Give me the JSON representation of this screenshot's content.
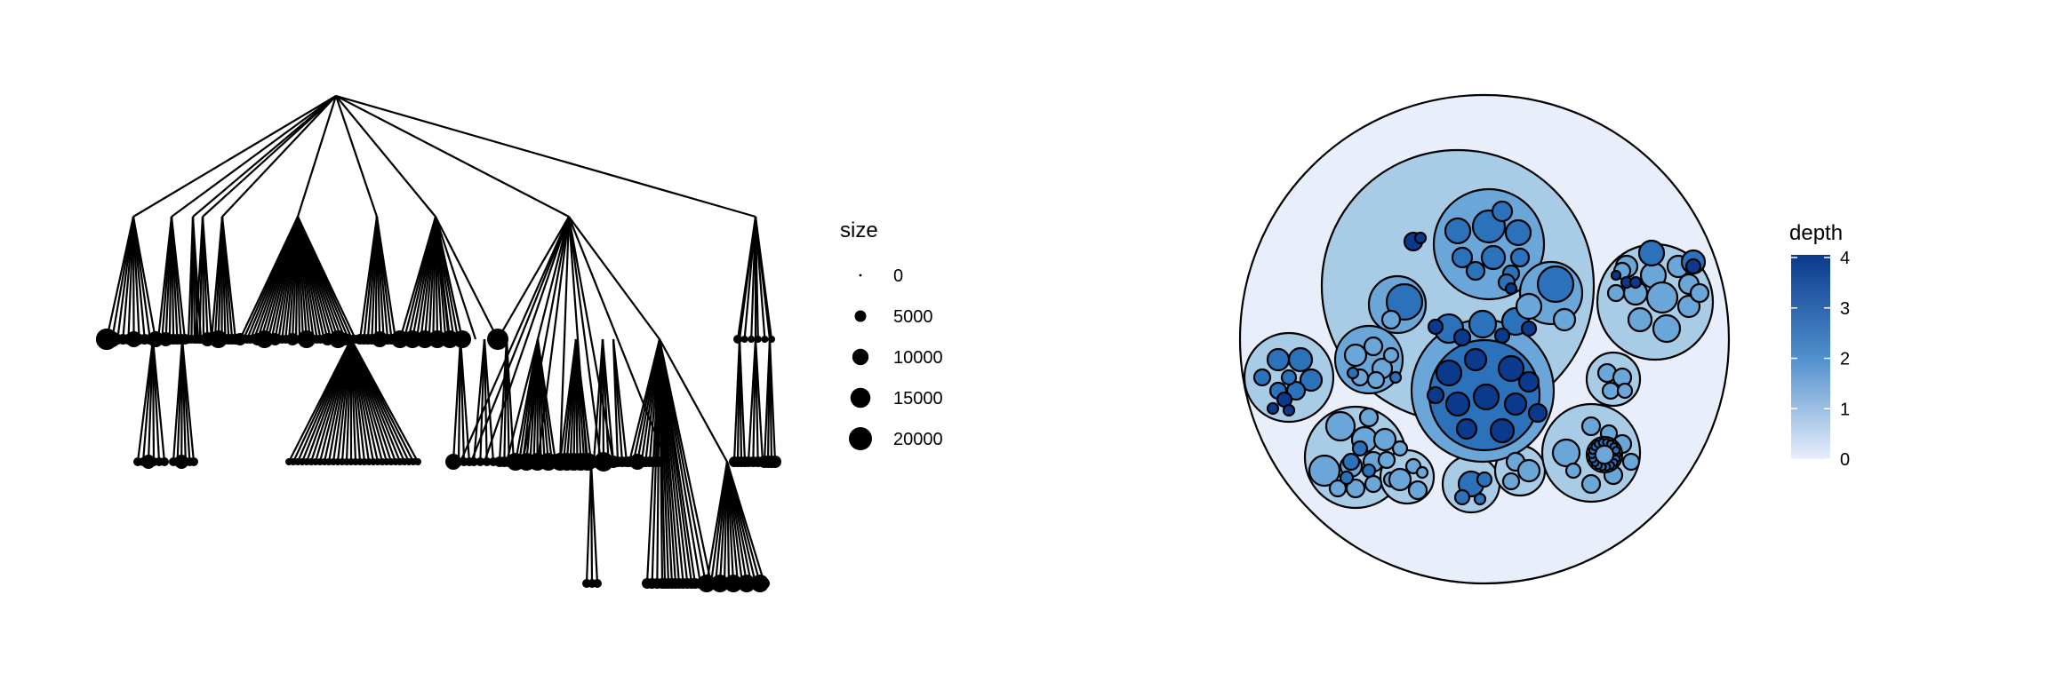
{
  "dendrogram": {
    "legend": {
      "title": "size",
      "entries": [
        {
          "label": "0",
          "value": 0
        },
        {
          "label": "5000",
          "value": 5000
        },
        {
          "label": "10000",
          "value": 10000
        },
        {
          "label": "15000",
          "value": 15000
        },
        {
          "label": "20000",
          "value": 20000
        }
      ]
    }
  },
  "circlepack": {
    "legend": {
      "title": "depth",
      "min": 0,
      "max": 4,
      "ticks": [
        "0",
        "1",
        "2",
        "3",
        "4"
      ],
      "color_low": "#e9eefb",
      "color_high": "#0b3a8c"
    }
  },
  "colors": {
    "line": "#000000",
    "background": "#ffffff"
  }
}
